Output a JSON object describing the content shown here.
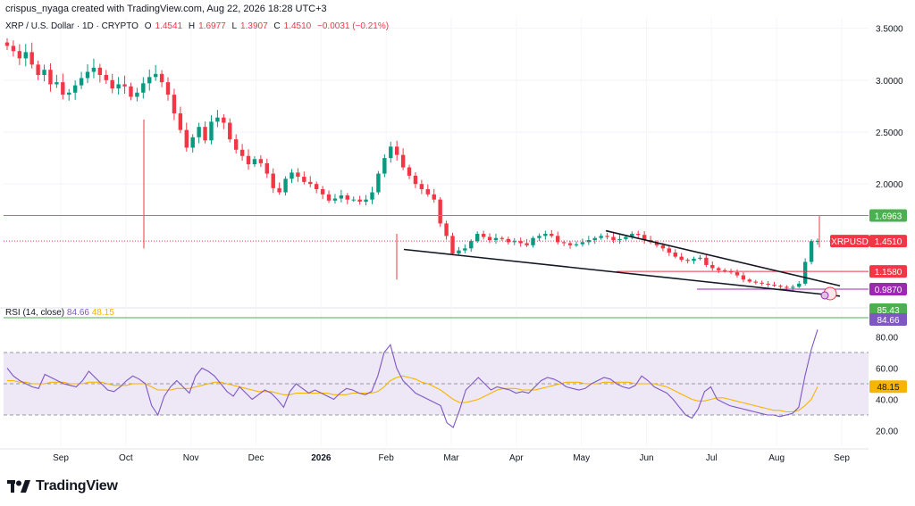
{
  "header": {
    "attribution": "crispus_nyaga created with TradingView.com, Aug 22, 2026 18:28 UTC+3"
  },
  "symbol": {
    "name": "XRP / U.S. Dollar · 1D · CRYPTO",
    "open_label": "O",
    "open": "1.4541",
    "high_label": "H",
    "high": "1.6977",
    "low_label": "L",
    "low": "1.3907",
    "close_label": "C",
    "close": "1.4510",
    "change": "−0.0031 (−0.21%)"
  },
  "rsi_header": {
    "name": "RSI (14, close)",
    "rsi": "84.66",
    "ma": "48.15"
  },
  "brand": {
    "name": "TradingView"
  },
  "colors": {
    "up": "#089981",
    "down": "#f23645",
    "rsi": "#7e57c2",
    "rsi_ma": "#f7b500",
    "hline_green": "#4caf50",
    "label_red": "#f23645",
    "label_purple": "#9c27b0",
    "rsi_band": "#ede7f6"
  },
  "chart_data": [
    {
      "type": "candlestick",
      "symbol": "XRPUSD",
      "ylim": [
        0.85,
        3.6
      ],
      "y_ticks": [
        3.5,
        3.0,
        2.5,
        2.0
      ],
      "y_tick_labels": [
        "3.5000",
        "3.0000",
        "2.5000",
        "2.0000"
      ],
      "x_tick_labels": [
        "Sep",
        "Oct",
        "Nov",
        "Dec",
        "2026",
        "Feb",
        "Mar",
        "Apr",
        "May",
        "Jun",
        "Jul",
        "Aug",
        "Sep"
      ],
      "closes_approx": [
        3.33,
        3.28,
        3.21,
        3.27,
        3.15,
        3.05,
        3.1,
        2.96,
        2.98,
        2.86,
        2.88,
        2.95,
        3.02,
        3.08,
        3.12,
        3.05,
        3.0,
        2.92,
        2.96,
        2.94,
        2.84,
        2.88,
        2.97,
        3.03,
        3.06,
        2.98,
        2.86,
        2.68,
        2.52,
        2.35,
        2.45,
        2.55,
        2.42,
        2.6,
        2.64,
        2.59,
        2.43,
        2.33,
        2.27,
        2.19,
        2.24,
        2.2,
        2.1,
        1.96,
        1.92,
        2.05,
        2.11,
        2.07,
        2.02,
        2.0,
        1.95,
        1.9,
        1.84,
        1.86,
        1.89,
        1.85,
        1.85,
        1.83,
        1.85,
        1.92,
        2.1,
        2.25,
        2.36,
        2.28,
        2.16,
        2.08,
        2.0,
        1.95,
        1.9,
        1.85,
        1.62,
        1.5,
        1.33,
        1.36,
        1.38,
        1.45,
        1.52,
        1.49,
        1.46,
        1.48,
        1.47,
        1.44,
        1.45,
        1.43,
        1.41,
        1.48,
        1.5,
        1.52,
        1.5,
        1.44,
        1.43,
        1.41,
        1.42,
        1.44,
        1.46,
        1.48,
        1.5,
        1.49,
        1.46,
        1.47,
        1.49,
        1.52,
        1.51,
        1.46,
        1.44,
        1.41,
        1.38,
        1.34,
        1.3,
        1.27,
        1.26,
        1.28,
        1.29,
        1.22,
        1.19,
        1.17,
        1.16,
        1.15,
        1.12,
        1.08,
        1.06,
        1.05,
        1.04,
        1.03,
        1.02,
        1.01,
        1.0,
        1.01,
        1.04,
        1.25,
        1.45,
        1.451
      ],
      "annotations": [
        {
          "label": "1.6963",
          "value": 1.6963,
          "kind": "resistance"
        },
        {
          "label": "1.1580",
          "value": 1.158,
          "kind": "support"
        },
        {
          "label": "0.9870",
          "value": 0.987,
          "kind": "support"
        },
        {
          "label": "XRPUSD",
          "value": 1.451,
          "kind": "symbol"
        },
        {
          "label": "1.4510",
          "value": 1.451,
          "kind": "last_price"
        }
      ],
      "patterns": [
        "falling wedge (two converging trendlines)"
      ],
      "grid": true
    },
    {
      "type": "line",
      "name": "RSI (14, close)",
      "ylim": [
        10,
        90
      ],
      "y_ticks": [
        80,
        60,
        40,
        20
      ],
      "y_tick_labels": [
        "80.00",
        "60.00",
        "40.00",
        "20.00"
      ],
      "band": [
        30,
        70
      ],
      "levels_label": [
        "85.43",
        "84.66",
        "48.15"
      ],
      "series": [
        {
          "name": "RSI",
          "last": 84.66
        },
        {
          "name": "MA",
          "last": 48.15
        }
      ],
      "rsi_values_approx": [
        60,
        55,
        52,
        50,
        48,
        47,
        56,
        54,
        52,
        50,
        49,
        48,
        52,
        58,
        54,
        50,
        46,
        45,
        48,
        52,
        55,
        53,
        50,
        36,
        30,
        42,
        48,
        52,
        48,
        44,
        55,
        60,
        58,
        55,
        50,
        45,
        42,
        48,
        44,
        40,
        43,
        46,
        44,
        40,
        35,
        45,
        50,
        47,
        44,
        46,
        44,
        42,
        40,
        44,
        47,
        46,
        44,
        43,
        45,
        55,
        70,
        75,
        60,
        52,
        48,
        44,
        42,
        40,
        38,
        36,
        25,
        22,
        33,
        46,
        50,
        54,
        50,
        46,
        48,
        47,
        46,
        44,
        45,
        44,
        48,
        52,
        54,
        53,
        51,
        48,
        47,
        46,
        47,
        50,
        52,
        54,
        53,
        50,
        48,
        47,
        49,
        55,
        52,
        48,
        46,
        44,
        40,
        35,
        30,
        28,
        34,
        45,
        48,
        40,
        38,
        36,
        35,
        34,
        33,
        32,
        31,
        30,
        30,
        29,
        30,
        31,
        35,
        55,
        72,
        84.66
      ],
      "ma_values_approx": [
        52,
        52,
        51,
        51,
        50,
        50,
        50,
        51,
        51,
        51,
        50,
        50,
        50,
        51,
        51,
        51,
        50,
        49,
        49,
        49,
        50,
        50,
        50,
        48,
        46,
        46,
        46,
        47,
        47,
        47,
        48,
        49,
        50,
        51,
        51,
        50,
        49,
        48,
        47,
        46,
        45,
        45,
        45,
        44,
        43,
        43,
        44,
        44,
        44,
        44,
        44,
        44,
        43,
        43,
        43,
        44,
        44,
        44,
        44,
        45,
        48,
        52,
        54,
        55,
        54,
        53,
        51,
        50,
        48,
        46,
        43,
        40,
        38,
        38,
        39,
        40,
        42,
        44,
        46,
        47,
        47,
        47,
        46,
        46,
        46,
        47,
        48,
        49,
        50,
        51,
        51,
        51,
        50,
        50,
        50,
        51,
        51,
        51,
        51,
        51,
        50,
        50,
        50,
        50,
        49,
        48,
        46,
        44,
        42,
        40,
        39,
        39,
        40,
        41,
        41,
        40,
        39,
        38,
        37,
        36,
        35,
        34,
        33,
        33,
        32,
        32,
        33,
        36,
        40,
        48.15
      ]
    }
  ]
}
